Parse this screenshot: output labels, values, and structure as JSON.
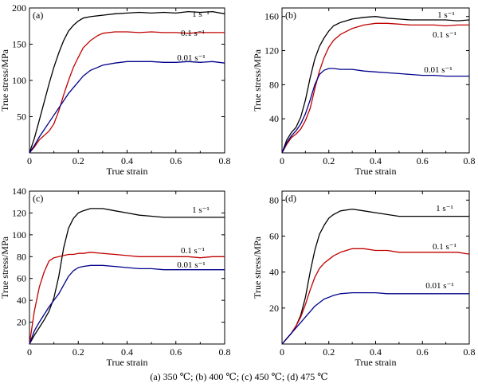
{
  "caption": "(a) 350 ℃; (b) 400 ℃; (c) 450 ℃; (d) 475 ℃",
  "chart_data": [
    {
      "type": "line",
      "panel": "(a)",
      "xlabel": "True strain",
      "ylabel": "True stress/MPa",
      "xlim": [
        0,
        0.8
      ],
      "ylim": [
        0,
        200
      ],
      "xticks": [
        "0",
        "0.2",
        "0.4",
        "0.6",
        "0.8"
      ],
      "yticks": [
        "50",
        "100",
        "150",
        "200"
      ],
      "series": [
        {
          "name": "1 s⁻¹",
          "color": "#000000",
          "x": [
            0,
            0.02,
            0.04,
            0.06,
            0.08,
            0.1,
            0.12,
            0.14,
            0.16,
            0.18,
            0.2,
            0.22,
            0.25,
            0.3,
            0.35,
            0.4,
            0.45,
            0.5,
            0.55,
            0.6,
            0.65,
            0.7,
            0.75,
            0.8
          ],
          "y": [
            0,
            20,
            45,
            70,
            95,
            118,
            138,
            155,
            168,
            176,
            182,
            186,
            188,
            190,
            192,
            193,
            194,
            193,
            194,
            193,
            195,
            194,
            195,
            192
          ]
        },
        {
          "name": "0.1 s⁻¹",
          "color": "#c00000",
          "x": [
            0,
            0.02,
            0.04,
            0.06,
            0.08,
            0.1,
            0.12,
            0.14,
            0.16,
            0.18,
            0.2,
            0.22,
            0.25,
            0.28,
            0.3,
            0.35,
            0.4,
            0.45,
            0.5,
            0.55,
            0.6,
            0.65,
            0.7,
            0.75,
            0.8
          ],
          "y": [
            0,
            8,
            18,
            24,
            30,
            40,
            58,
            80,
            100,
            118,
            132,
            145,
            155,
            162,
            165,
            167,
            167,
            166,
            167,
            166,
            166,
            165,
            166,
            166,
            166
          ]
        },
        {
          "name": "0.01 s⁻¹",
          "color": "#00008b",
          "x": [
            0,
            0.02,
            0.04,
            0.06,
            0.08,
            0.1,
            0.12,
            0.14,
            0.16,
            0.18,
            0.2,
            0.22,
            0.25,
            0.3,
            0.35,
            0.4,
            0.45,
            0.5,
            0.55,
            0.6,
            0.65,
            0.7,
            0.75,
            0.8
          ],
          "y": [
            0,
            10,
            22,
            32,
            42,
            52,
            62,
            72,
            82,
            90,
            98,
            106,
            114,
            121,
            124,
            126,
            126,
            126,
            125,
            125,
            126,
            125,
            126,
            124
          ]
        }
      ]
    },
    {
      "type": "line",
      "panel": "(b)",
      "xlabel": "True strain",
      "ylabel": "True stress/MPa",
      "xlim": [
        0,
        0.8
      ],
      "ylim": [
        0,
        170
      ],
      "xticks": [
        "0",
        "0.2",
        "0.4",
        "0.6",
        "0.8"
      ],
      "yticks": [
        "40",
        "80",
        "120",
        "160"
      ],
      "series": [
        {
          "name": "1 s⁻¹",
          "color": "#000000",
          "x": [
            0,
            0.02,
            0.04,
            0.06,
            0.08,
            0.1,
            0.12,
            0.14,
            0.16,
            0.18,
            0.2,
            0.22,
            0.25,
            0.3,
            0.35,
            0.4,
            0.45,
            0.5,
            0.55,
            0.6,
            0.65,
            0.7,
            0.75,
            0.8
          ],
          "y": [
            0,
            15,
            24,
            30,
            42,
            62,
            88,
            110,
            125,
            135,
            143,
            149,
            153,
            157,
            159,
            160,
            158,
            157,
            156,
            156,
            156,
            156,
            155,
            156
          ]
        },
        {
          "name": "0.1 s⁻¹",
          "color": "#c00000",
          "x": [
            0,
            0.02,
            0.04,
            0.06,
            0.08,
            0.1,
            0.12,
            0.14,
            0.16,
            0.18,
            0.2,
            0.22,
            0.25,
            0.3,
            0.35,
            0.4,
            0.45,
            0.5,
            0.55,
            0.6,
            0.65,
            0.7,
            0.75,
            0.8
          ],
          "y": [
            0,
            10,
            18,
            22,
            28,
            38,
            52,
            75,
            96,
            112,
            124,
            132,
            139,
            146,
            150,
            152,
            152,
            151,
            150,
            150,
            150,
            149,
            150,
            150
          ]
        },
        {
          "name": "0.01 s⁻¹",
          "color": "#00008b",
          "x": [
            0,
            0.02,
            0.04,
            0.06,
            0.08,
            0.1,
            0.12,
            0.14,
            0.16,
            0.18,
            0.2,
            0.22,
            0.25,
            0.3,
            0.35,
            0.4,
            0.45,
            0.5,
            0.55,
            0.6,
            0.65,
            0.7,
            0.75,
            0.8
          ],
          "y": [
            0,
            12,
            20,
            26,
            34,
            46,
            62,
            80,
            92,
            97,
            99,
            99,
            98,
            98,
            96,
            95,
            94,
            93,
            92,
            91,
            91,
            90,
            90,
            90
          ]
        }
      ]
    },
    {
      "type": "line",
      "panel": "(c)",
      "xlabel": "True strain",
      "ylabel": "True stress/MPa",
      "xlim": [
        0,
        0.8
      ],
      "ylim": [
        0,
        140
      ],
      "xticks": [
        "0",
        "0.2",
        "0.4",
        "0.6",
        "0.8"
      ],
      "yticks": [
        "20",
        "40",
        "60",
        "80",
        "100",
        "120",
        "140"
      ],
      "series": [
        {
          "name": "1 s⁻¹",
          "color": "#000000",
          "x": [
            0,
            0.02,
            0.04,
            0.06,
            0.08,
            0.1,
            0.12,
            0.14,
            0.16,
            0.18,
            0.2,
            0.22,
            0.25,
            0.3,
            0.35,
            0.4,
            0.45,
            0.5,
            0.55,
            0.6,
            0.65,
            0.7,
            0.75,
            0.8
          ],
          "y": [
            0,
            8,
            15,
            22,
            30,
            42,
            62,
            88,
            106,
            115,
            120,
            122,
            124,
            124,
            122,
            120,
            118,
            117,
            116,
            116,
            116,
            116,
            116,
            116
          ]
        },
        {
          "name": "0.1 s⁻¹",
          "color": "#c00000",
          "x": [
            0,
            0.02,
            0.04,
            0.06,
            0.08,
            0.1,
            0.12,
            0.14,
            0.16,
            0.18,
            0.2,
            0.22,
            0.25,
            0.3,
            0.35,
            0.4,
            0.45,
            0.5,
            0.55,
            0.6,
            0.65,
            0.7,
            0.75,
            0.8
          ],
          "y": [
            0,
            30,
            52,
            66,
            76,
            79,
            80,
            81,
            82,
            82,
            83,
            83,
            84,
            83,
            82,
            81,
            80,
            80,
            80,
            80,
            80,
            79,
            80,
            80
          ]
        },
        {
          "name": "0.01 s⁻¹",
          "color": "#00008b",
          "x": [
            0,
            0.02,
            0.04,
            0.06,
            0.08,
            0.1,
            0.12,
            0.14,
            0.16,
            0.18,
            0.2,
            0.22,
            0.25,
            0.3,
            0.35,
            0.4,
            0.45,
            0.5,
            0.55,
            0.6,
            0.65,
            0.7,
            0.75,
            0.8
          ],
          "y": [
            0,
            12,
            20,
            27,
            34,
            40,
            46,
            54,
            62,
            67,
            70,
            71,
            72,
            72,
            71,
            70,
            69,
            69,
            68,
            68,
            68,
            68,
            68,
            68
          ]
        }
      ]
    },
    {
      "type": "line",
      "panel": "(d)",
      "xlabel": "True strain",
      "ylabel": "True stress/MPa",
      "xlim": [
        0,
        0.8
      ],
      "ylim": [
        0,
        85
      ],
      "xticks": [
        "0",
        "0.2",
        "0.4",
        "0.6",
        "0.8"
      ],
      "yticks": [
        "20",
        "40",
        "60",
        "80"
      ],
      "series": [
        {
          "name": "1 s⁻¹",
          "color": "#000000",
          "x": [
            0,
            0.02,
            0.04,
            0.06,
            0.08,
            0.1,
            0.12,
            0.14,
            0.16,
            0.18,
            0.2,
            0.22,
            0.25,
            0.3,
            0.35,
            0.4,
            0.45,
            0.5,
            0.55,
            0.6,
            0.65,
            0.7,
            0.75,
            0.8
          ],
          "y": [
            0,
            3,
            6,
            10,
            16,
            26,
            40,
            52,
            61,
            66,
            70,
            72,
            74,
            75,
            74,
            73,
            72,
            71,
            71,
            71,
            71,
            71,
            71,
            71
          ]
        },
        {
          "name": "0.1 s⁻¹",
          "color": "#c00000",
          "x": [
            0,
            0.02,
            0.04,
            0.06,
            0.08,
            0.1,
            0.12,
            0.14,
            0.16,
            0.18,
            0.2,
            0.22,
            0.25,
            0.3,
            0.35,
            0.4,
            0.45,
            0.5,
            0.55,
            0.6,
            0.65,
            0.7,
            0.75,
            0.8
          ],
          "y": [
            0,
            3,
            6,
            10,
            15,
            22,
            30,
            37,
            42,
            45,
            47,
            49,
            51,
            53,
            53,
            52,
            52,
            51,
            51,
            51,
            51,
            51,
            51,
            50
          ]
        },
        {
          "name": "0.01 s⁻¹",
          "color": "#00008b",
          "x": [
            0,
            0.02,
            0.04,
            0.06,
            0.08,
            0.1,
            0.12,
            0.14,
            0.16,
            0.18,
            0.2,
            0.22,
            0.25,
            0.3,
            0.35,
            0.4,
            0.45,
            0.5,
            0.55,
            0.6,
            0.65,
            0.7,
            0.75,
            0.8
          ],
          "y": [
            0,
            3,
            6,
            9,
            12,
            15,
            18,
            21,
            23,
            25,
            26,
            27,
            28,
            28.5,
            28.5,
            28.5,
            28,
            28,
            28,
            28,
            28,
            28,
            28,
            28
          ]
        }
      ]
    }
  ]
}
